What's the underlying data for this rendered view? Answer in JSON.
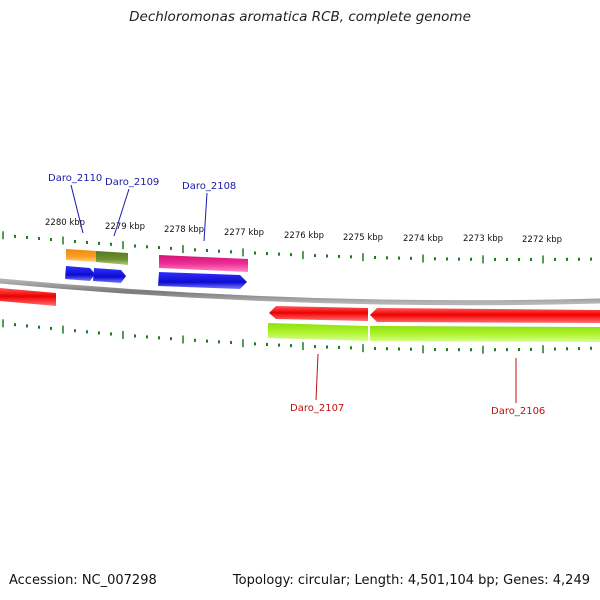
{
  "title": "Dechloromonas aromatica RCB, complete genome",
  "footer": {
    "accession": "Accession: NC_007298",
    "topology": "Topology: circular; Length: 4,501,104 bp; Genes: 4,249"
  },
  "scale_labels": [
    "2280 kbp",
    "2279 kbp",
    "2278 kbp",
    "2277 kbp",
    "2276 kbp",
    "2275 kbp",
    "2274 kbp",
    "2273 kbp",
    "2272 kbp"
  ],
  "gene_labels": [
    {
      "text": "Daro_2110",
      "strand": "forward"
    },
    {
      "text": "Daro_2109",
      "strand": "forward"
    },
    {
      "text": "Daro_2108",
      "strand": "forward"
    },
    {
      "text": "Daro_2107",
      "strand": "reverse"
    },
    {
      "text": "Daro_2106",
      "strand": "reverse"
    }
  ],
  "colors": {
    "forward_label": "#1a1aaa",
    "reverse_label": "#c01010",
    "backbone": "#808080",
    "ticks": "#1e7a1e",
    "cds_blue": "#1010e0",
    "cds_red": "#ee0000",
    "cds_magenta": "#e0208a",
    "cds_orange": "#f29a1a",
    "cds_olive": "#6a8c2a",
    "cds_lime": "#a8f020"
  }
}
